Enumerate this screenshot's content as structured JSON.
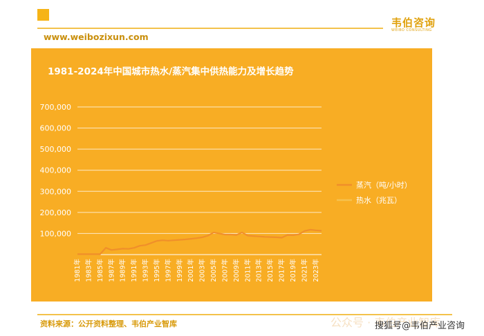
{
  "header": {
    "brand_name": "韦伯咨询",
    "brand_sub": "WEIBO CONSULTING",
    "url": "www.weibozixun.com"
  },
  "footer": {
    "source": "资料来源：公开资料整理、韦伯产业智库",
    "watermark": "公众号 · 韦伯产业智库",
    "credit": "搜狐号@韦伯产业咨询"
  },
  "colors": {
    "panel": "#f8ad24",
    "steam": "#f08f2a",
    "hot_water": "#f6c14e",
    "brand": "#e0a10d"
  },
  "chart_data": {
    "type": "line",
    "title": "1981-2024年中国城市热水/蒸汽集中供热能力及增长趋势",
    "xlabel": "",
    "ylabel": "",
    "ylim": [
      0,
      700000
    ],
    "yticks": [
      "700,000",
      "600,000",
      "500,000",
      "400,000",
      "300,000",
      "200,000",
      "100,000"
    ],
    "ytick_values": [
      700000,
      600000,
      500000,
      400000,
      300000,
      200000,
      100000
    ],
    "grid": true,
    "legend_position": "right",
    "x": [
      1981,
      1982,
      1983,
      1984,
      1985,
      1986,
      1987,
      1988,
      1989,
      1990,
      1991,
      1992,
      1993,
      1994,
      1995,
      1996,
      1997,
      1998,
      1999,
      2000,
      2001,
      2002,
      2003,
      2004,
      2005,
      2006,
      2007,
      2008,
      2009,
      2010,
      2011,
      2012,
      2013,
      2014,
      2015,
      2016,
      2017,
      2018,
      2019,
      2020,
      2021,
      2022,
      2023,
      2024
    ],
    "xticks": [
      "1981年",
      "1983年",
      "1985年",
      "1987年",
      "1989年",
      "1991年",
      "1993年",
      "1995年",
      "1997年",
      "1999年",
      "2001年",
      "2003年",
      "2005年",
      "2007年",
      "2009年",
      "2011年",
      "2013年",
      "2015年",
      "2017年",
      "2019年",
      "2021年",
      "2023年"
    ],
    "series": [
      {
        "name": "蒸汽（吨/小时）",
        "color": "#f08f2a",
        "values": [
          2000,
          2000,
          2000,
          2000,
          2000,
          32000,
          22000,
          25000,
          28000,
          27000,
          32000,
          42000,
          45000,
          55000,
          65000,
          68000,
          66000,
          68000,
          70000,
          72000,
          75000,
          78000,
          82000,
          90000,
          105000,
          100000,
          95000,
          95000,
          93000,
          105000,
          90000,
          88000,
          86000,
          84000,
          83000,
          82000,
          80000,
          93000,
          92000,
          96000,
          112000,
          118000,
          115000,
          113000
        ]
      },
      {
        "name": "热水（兆瓦）",
        "color": "#f6c14e",
        "values": [
          null,
          null,
          null,
          null,
          null,
          null,
          null,
          null,
          null,
          null,
          null,
          null,
          null,
          null,
          null,
          null,
          null,
          null,
          null,
          null,
          null,
          null,
          null,
          null,
          null,
          null,
          null,
          null,
          null,
          null,
          null,
          null,
          null,
          null,
          null,
          null,
          null,
          null,
          null,
          null,
          null,
          null,
          null,
          null
        ]
      }
    ]
  }
}
